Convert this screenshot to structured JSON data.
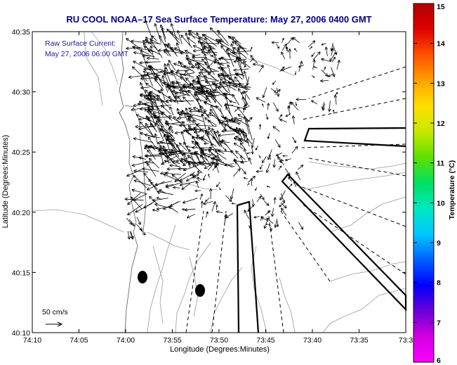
{
  "title": "RU COOL  NOAA–17  Sea Surface Temperature:  May 27, 2006 0400 GMT",
  "annotation": {
    "line1": "Raw Surface Current:",
    "line2": "May 27, 2006 06:00 GMT"
  },
  "scale_label": "50 cm/s",
  "xlabel": "Longitude (Degrees:Minutes)",
  "ylabel": "Latitude (Degrees:Minutes)",
  "x_ticks": [
    "74:10",
    "74:05",
    "74:00",
    "73:55",
    "73:50",
    "73:45",
    "73:40",
    "73:35",
    "73:3"
  ],
  "y_ticks": [
    "40:35",
    "40:30",
    "40:25",
    "40:20",
    "40:15",
    "40:10"
  ],
  "colorbar": {
    "label": "Temperature (°C)",
    "ticks": [
      "15",
      "14",
      "13",
      "12",
      "11",
      "10",
      "9",
      "8",
      "7",
      "6"
    ],
    "range": [
      6,
      15
    ],
    "colors": [
      "#ff00ff",
      "#d000e0",
      "#6a00d8",
      "#0000ff",
      "#0060ff",
      "#00c8ff",
      "#00e8c0",
      "#00e060",
      "#60e000",
      "#c8e800",
      "#ffe000",
      "#ffa000",
      "#ff5000",
      "#e00000",
      "#b00000"
    ]
  },
  "chart_data": {
    "type": "map",
    "lon_range": [
      "74:10",
      "73:3"
    ],
    "lat_range": [
      "40:10",
      "40:35"
    ],
    "colorbar_range": [
      6,
      15
    ]
  }
}
